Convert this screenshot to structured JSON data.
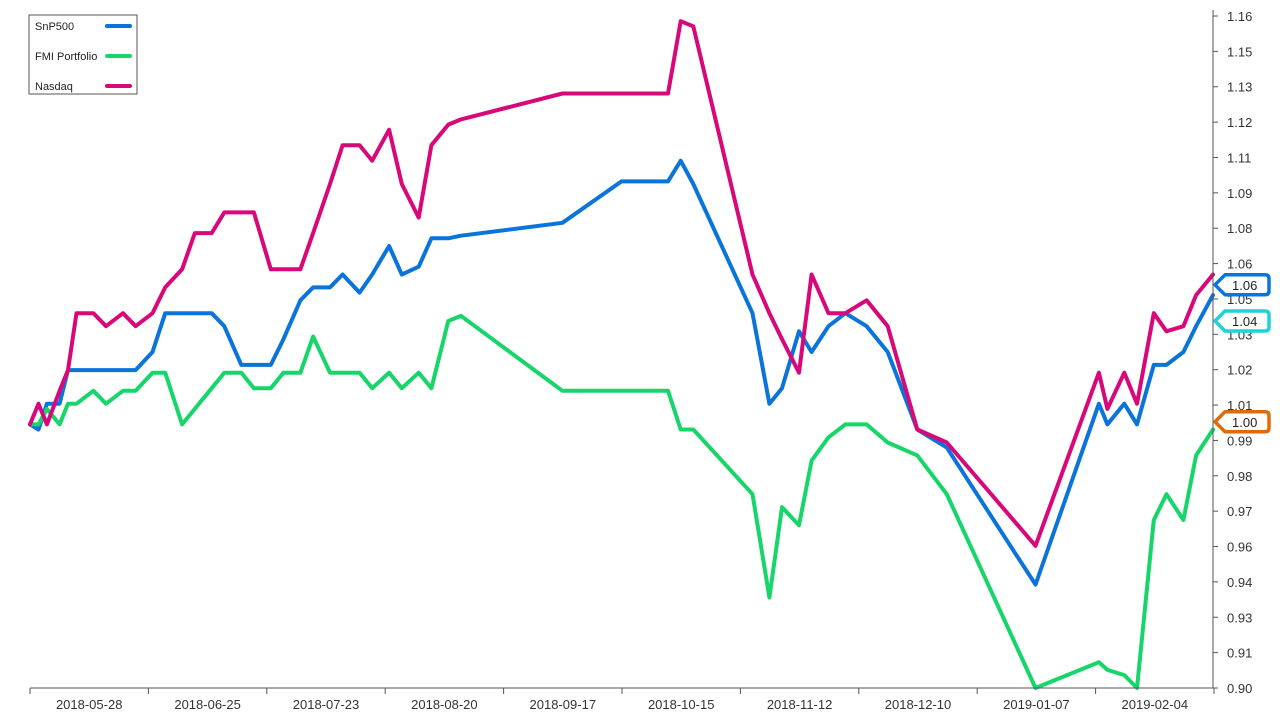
{
  "chart_data": {
    "type": "line",
    "title": "",
    "xlabel": "",
    "ylabel": "",
    "x_ticks": [
      "2018-05-28",
      "2018-06-25",
      "2018-07-23",
      "2018-08-20",
      "2018-09-17",
      "2018-10-15",
      "2018-11-12",
      "2018-12-10",
      "2019-01-07",
      "2019-02-04"
    ],
    "x_range": [
      "2018-05-14",
      "2019-02-18"
    ],
    "y_ticks": [
      "0.90",
      "0.91",
      "0.93",
      "0.94",
      "0.96",
      "0.97",
      "0.98",
      "0.99",
      "1.01",
      "1.02",
      "1.03",
      "1.05",
      "1.06",
      "1.08",
      "1.09",
      "1.11",
      "1.12",
      "1.13",
      "1.15",
      "1.16"
    ],
    "ylim": [
      0.9,
      1.16
    ],
    "grid": false,
    "legend": "top-left",
    "x": [
      "2018-05-14",
      "2018-05-16",
      "2018-05-18",
      "2018-05-21",
      "2018-05-23",
      "2018-05-25",
      "2018-05-29",
      "2018-06-01",
      "2018-06-05",
      "2018-06-08",
      "2018-06-12",
      "2018-06-15",
      "2018-06-19",
      "2018-06-22",
      "2018-06-26",
      "2018-06-29",
      "2018-07-03",
      "2018-07-06",
      "2018-07-10",
      "2018-07-13",
      "2018-07-17",
      "2018-07-20",
      "2018-07-24",
      "2018-07-27",
      "2018-07-31",
      "2018-08-03",
      "2018-08-07",
      "2018-08-10",
      "2018-08-14",
      "2018-08-17",
      "2018-08-21",
      "2018-08-24",
      "2018-09-17",
      "2018-10-01",
      "2018-10-12",
      "2018-10-15",
      "2018-10-18",
      "2018-11-01",
      "2018-11-05",
      "2018-11-08",
      "2018-11-12",
      "2018-11-15",
      "2018-11-19",
      "2018-11-23",
      "2018-11-28",
      "2018-12-03",
      "2018-12-10",
      "2018-12-17",
      "2019-01-07",
      "2019-01-22",
      "2019-01-24",
      "2019-01-28",
      "2019-01-31",
      "2019-02-04",
      "2019-02-07",
      "2019-02-11",
      "2019-02-14",
      "2019-02-18"
    ],
    "series": [
      {
        "name": "SnP500",
        "color": "#0a74da",
        "values": [
          1.002,
          1.0,
          1.01,
          1.01,
          1.023,
          1.023,
          1.023,
          1.023,
          1.023,
          1.023,
          1.03,
          1.045,
          1.045,
          1.045,
          1.045,
          1.04,
          1.025,
          1.025,
          1.025,
          1.035,
          1.05,
          1.055,
          1.055,
          1.06,
          1.053,
          1.06,
          1.071,
          1.06,
          1.063,
          1.074,
          1.074,
          1.075,
          1.08,
          1.096,
          1.096,
          1.104,
          1.095,
          1.045,
          1.01,
          1.016,
          1.038,
          1.03,
          1.04,
          1.045,
          1.04,
          1.03,
          1.0,
          0.993,
          0.94,
          1.01,
          1.002,
          1.01,
          1.002,
          1.025,
          1.025,
          1.03,
          1.04,
          1.052
        ]
      },
      {
        "name": "FMI Portfolio",
        "color": "#16d66a",
        "values": [
          1.002,
          1.002,
          1.008,
          1.002,
          1.01,
          1.01,
          1.015,
          1.01,
          1.015,
          1.015,
          1.022,
          1.022,
          1.002,
          1.008,
          1.016,
          1.022,
          1.022,
          1.016,
          1.016,
          1.022,
          1.022,
          1.036,
          1.022,
          1.022,
          1.022,
          1.016,
          1.022,
          1.016,
          1.022,
          1.016,
          1.042,
          1.044,
          1.015,
          1.015,
          1.015,
          1.0,
          1.0,
          0.975,
          0.935,
          0.97,
          0.963,
          0.988,
          0.997,
          1.002,
          1.002,
          0.995,
          0.99,
          0.975,
          0.9,
          0.91,
          0.907,
          0.905,
          0.9,
          0.965,
          0.975,
          0.965,
          0.99,
          1.0
        ]
      },
      {
        "name": "Nasdaq",
        "color": "#d8087a",
        "values": [
          1.002,
          1.01,
          1.002,
          1.015,
          1.023,
          1.045,
          1.045,
          1.04,
          1.045,
          1.04,
          1.045,
          1.055,
          1.062,
          1.076,
          1.076,
          1.084,
          1.084,
          1.084,
          1.062,
          1.062,
          1.062,
          1.076,
          1.095,
          1.11,
          1.11,
          1.104,
          1.116,
          1.095,
          1.082,
          1.11,
          1.118,
          1.12,
          1.13,
          1.13,
          1.13,
          1.158,
          1.156,
          1.06,
          1.045,
          1.035,
          1.022,
          1.06,
          1.045,
          1.045,
          1.05,
          1.04,
          1.0,
          0.995,
          0.955,
          1.022,
          1.008,
          1.022,
          1.01,
          1.045,
          1.038,
          1.04,
          1.052,
          1.06
        ]
      }
    ],
    "badges": [
      {
        "label": "1.06",
        "value": 1.056,
        "color": "#0a74da"
      },
      {
        "label": "1.04",
        "value": 1.042,
        "color": "#1fd2d6"
      },
      {
        "label": "1.00",
        "value": 1.003,
        "color": "#e06a0a"
      }
    ]
  }
}
